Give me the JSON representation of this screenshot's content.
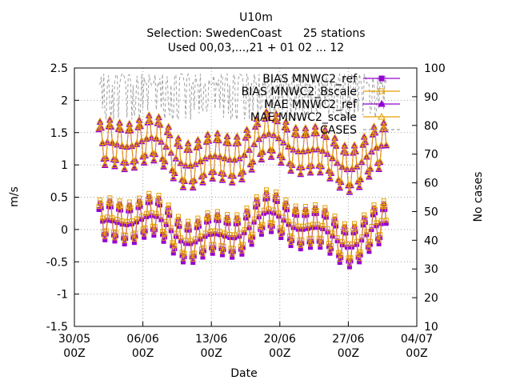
{
  "chart_data": {
    "type": "line",
    "title": "U10m",
    "subtitle_lines": [
      "Selection: SwedenCoast      25 stations",
      "Used 00,03,...,21 + 01 02 ... 12"
    ],
    "xlabel": "Date",
    "ylabel": "m/s",
    "y2label": "No cases",
    "x_ticks": [
      {
        "date": "2017-05-30T00",
        "label1": "30/05",
        "label2": "00Z"
      },
      {
        "date": "2017-06-06T00",
        "label1": "06/06",
        "label2": "00Z"
      },
      {
        "date": "2017-06-13T00",
        "label1": "13/06",
        "label2": "00Z"
      },
      {
        "date": "2017-06-20T00",
        "label1": "20/06",
        "label2": "00Z"
      },
      {
        "date": "2017-06-27T00",
        "label1": "27/06",
        "label2": "00Z"
      },
      {
        "date": "2017-07-04T00",
        "label1": "04/07",
        "label2": "00Z"
      }
    ],
    "xlim": [
      "2017-05-30T00",
      "2017-07-04T00"
    ],
    "data_range": [
      "2017-06-01T12",
      "2017-06-30T21"
    ],
    "ylim": [
      -1.5,
      2.5
    ],
    "y_ticks": [
      -1.5,
      -1,
      -0.5,
      0,
      0.5,
      1,
      1.5,
      2,
      2.5
    ],
    "y_tick_labels": [
      "-1.5",
      "-1",
      "-0.5",
      "0",
      "0.5",
      "1",
      "1.5",
      "2",
      "2.5"
    ],
    "y2lim": [
      10,
      100
    ],
    "y2_ticks": [
      10,
      20,
      30,
      40,
      50,
      60,
      70,
      80,
      90,
      100
    ],
    "grid": true,
    "legend_position": "top-right",
    "series": [
      {
        "name": "BIAS MNWC2_ref",
        "key": "bias_ref",
        "color": "#9400d3",
        "marker": "square-filled",
        "axis": "y1",
        "level": 0.0,
        "diurnal_amp": 0.3
      },
      {
        "name": "BIAS MNWC2_Bscale",
        "key": "bias_b",
        "color": "#e69f00",
        "marker": "square-open",
        "axis": "y1",
        "level": 0.05,
        "diurnal_amp": 0.3
      },
      {
        "name": "MAE MNWC2_ref",
        "key": "mae_ref",
        "color": "#9400d3",
        "marker": "triangle-filled",
        "axis": "y1",
        "level": 1.2,
        "diurnal_amp": 0.35
      },
      {
        "name": "MAE MNWC2_scale",
        "key": "mae_s",
        "color": "#e69f00",
        "marker": "triangle-open",
        "axis": "y1",
        "level": 1.22,
        "diurnal_amp": 0.35
      },
      {
        "name": "CASES",
        "key": "cases",
        "color": "#a0a0a0",
        "marker": "none",
        "axis": "y2",
        "dashed": true,
        "level": 96
      }
    ]
  }
}
